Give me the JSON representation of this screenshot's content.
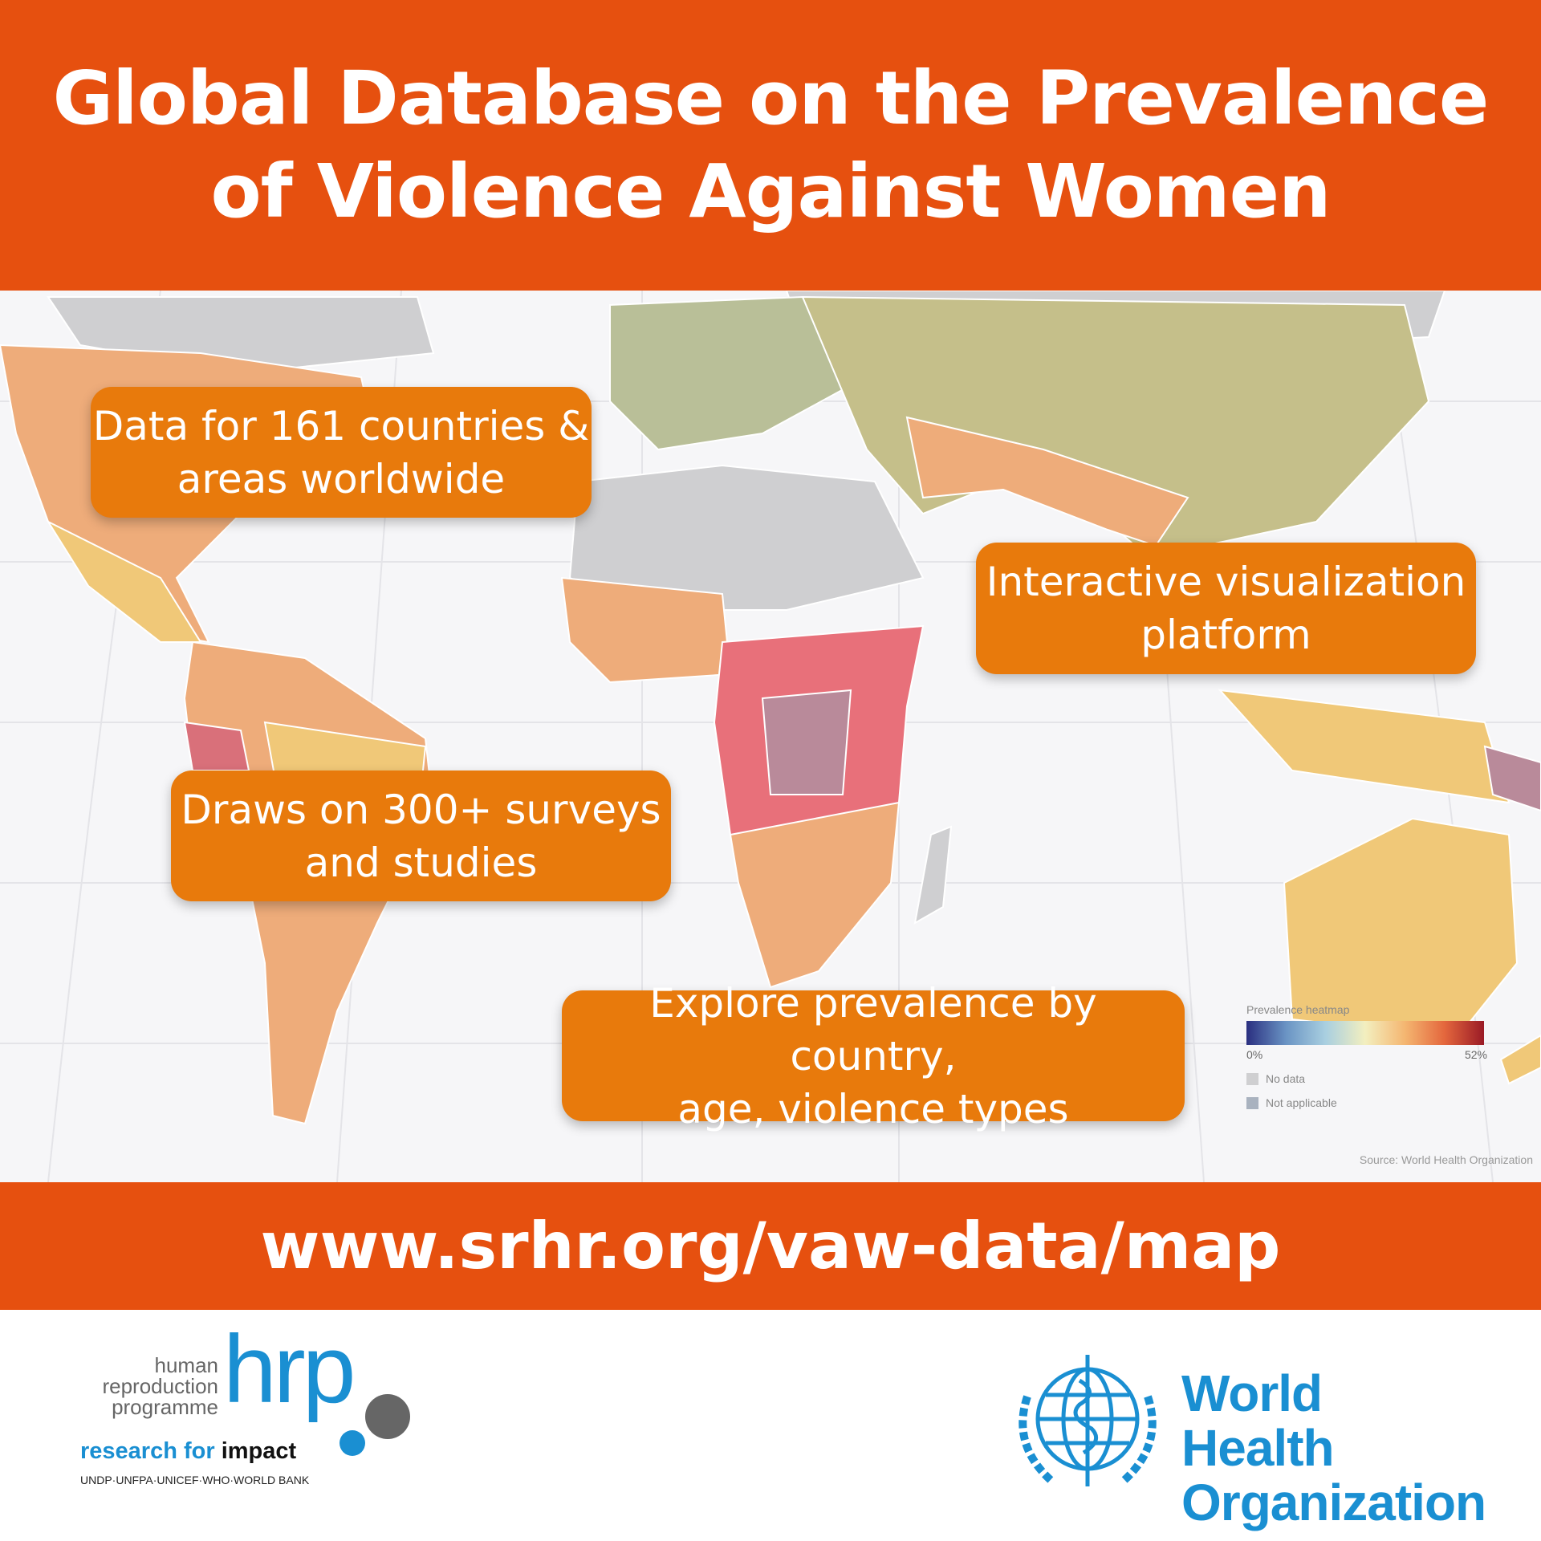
{
  "header": {
    "title_line1": "Global Database on the Prevalence",
    "title_line2": "of Violence Against Women",
    "background": "#e6500f"
  },
  "callouts": [
    {
      "line1": "Data for 161 countries &",
      "line2": "areas worldwide"
    },
    {
      "line1": "Interactive visualization",
      "line2": "platform"
    },
    {
      "line1": "Draws on 300+ surveys",
      "line2": "and studies"
    },
    {
      "line1": "Explore prevalence by country,",
      "line2": "age, violence types"
    }
  ],
  "callout_color": "#e87a0c",
  "legend": {
    "title": "Prevalence heatmap",
    "min": "0%",
    "max": "52%",
    "no_data": "No data",
    "not_applicable": "Not applicable",
    "no_data_color": "#cfcfd1",
    "not_applicable_color": "#a9b2bf"
  },
  "source": "Source: World Health Organization",
  "url": "www.srhr.org/vaw-data/map",
  "hrp_logo": {
    "line1": "human",
    "line2": "reproduction",
    "line3": "programme",
    "mark": "hrp",
    "tagline_a": "research for",
    "tagline_b": "impact",
    "partners": "UNDP·UNFPA·UNICEF·WHO·WORLD BANK"
  },
  "who_logo": {
    "line1": "World Health",
    "line2": "Organization",
    "color": "#1a8fd2"
  }
}
